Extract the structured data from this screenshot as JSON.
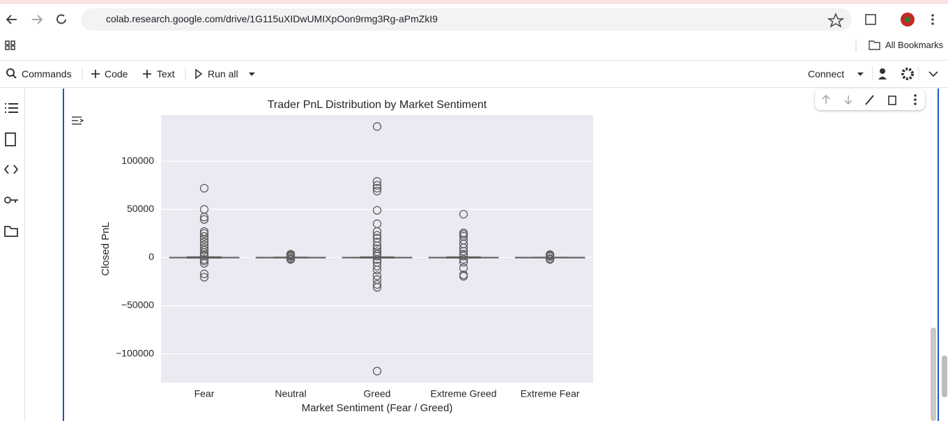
{
  "browser": {
    "url": "colab.research.google.com/drive/1G115uXIDwUMIXpOon9rmg3Rg-aPmZkI9",
    "bookmarks": "All Bookmarks"
  },
  "toolbar": {
    "commands": "Commands",
    "code": "Code",
    "text": "Text",
    "run_all": "Run all",
    "connect": "Connect"
  },
  "chart_data": {
    "type": "box",
    "title": "Trader PnL Distribution by Market Sentiment",
    "xlabel": "Market Sentiment (Fear / Greed)",
    "ylabel": "Closed PnL",
    "categories": [
      "Fear",
      "Neutral",
      "Greed",
      "Extreme Greed",
      "Extreme Fear"
    ],
    "color": "#5f5f5f",
    "background": "#eaeaf2",
    "grid": true,
    "ylim": [
      -130000,
      148000
    ],
    "yticks": [
      {
        "value": -100000,
        "label": "−100000"
      },
      {
        "value": -50000,
        "label": "−50000"
      },
      0,
      50000,
      100000
    ],
    "boxes": [
      {
        "whislo": -600,
        "q1": -5,
        "med": 0,
        "q3": 60,
        "whishi": 700,
        "fliers": [
          72000,
          50000,
          42000,
          39500,
          27000,
          25000,
          22000,
          19000,
          16000,
          13000,
          10000,
          7500,
          5000,
          3000,
          1500,
          -2000,
          -3500,
          -6000,
          -17000,
          -20500
        ]
      },
      {
        "whislo": -300,
        "q1": -2,
        "med": 0,
        "q3": 20,
        "whishi": 300,
        "fliers": [
          3500,
          2500,
          1500,
          800,
          -800,
          -1500,
          -2000
        ]
      },
      {
        "whislo": -500,
        "q1": -5,
        "med": 0,
        "q3": 40,
        "whishi": 600,
        "fliers": [
          136000,
          79000,
          75000,
          72000,
          69000,
          49000,
          35000,
          27000,
          23000,
          20000,
          16000,
          12000,
          9000,
          6000,
          3500,
          1500,
          -2000,
          -5000,
          -9000,
          -13000,
          -19000,
          -23000,
          -28000,
          -31000,
          -118000
        ]
      },
      {
        "whislo": -500,
        "q1": -5,
        "med": 0,
        "q3": 40,
        "whishi": 600,
        "fliers": [
          45000,
          25500,
          24000,
          22000,
          18000,
          14000,
          10000,
          6500,
          3500,
          1500,
          -2000,
          -5000,
          -11000,
          -18000,
          -19500
        ]
      },
      {
        "whislo": -200,
        "q1": -2,
        "med": 0,
        "q3": 15,
        "whishi": 200,
        "fliers": [
          3000,
          2000,
          1000,
          -1000,
          -2000
        ]
      }
    ]
  }
}
